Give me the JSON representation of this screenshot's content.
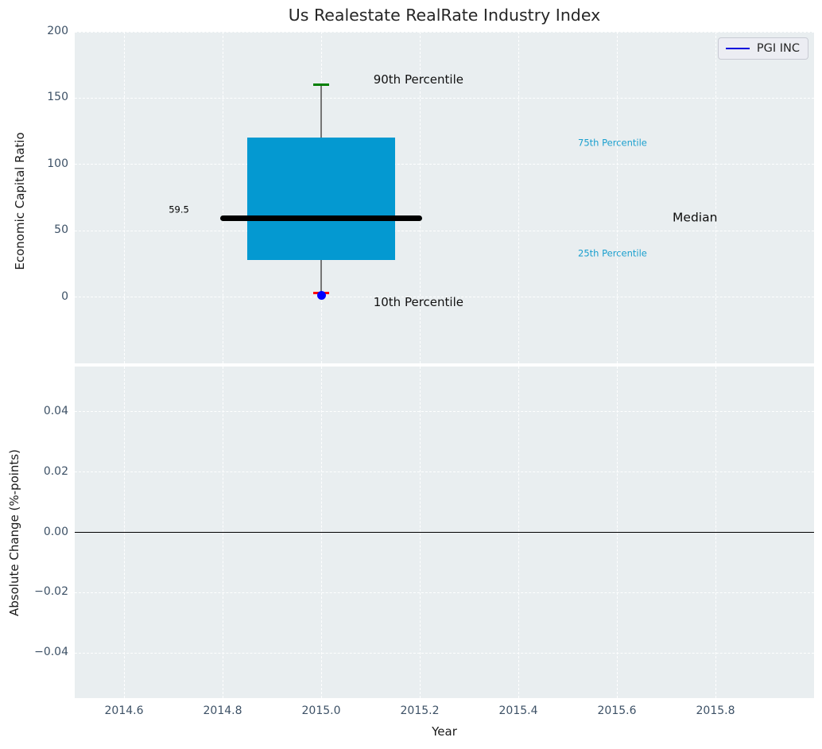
{
  "figure": {
    "title": "Us Realestate RealRate Industry Index",
    "background": "#ffffff",
    "panel_background": "#e9eef0",
    "grid_color": "#ffffff",
    "tick_color": "#3d5166",
    "label_color": "#1a1a1a"
  },
  "legend": {
    "label": "PGI INC",
    "line_color": "#0000dd"
  },
  "xticks": [
    {
      "value": 2014.6,
      "label": "2014.6"
    },
    {
      "value": 2014.8,
      "label": "2014.8"
    },
    {
      "value": 2015.0,
      "label": "2015.0"
    },
    {
      "value": 2015.2,
      "label": "2015.2"
    },
    {
      "value": 2015.4,
      "label": "2015.4"
    },
    {
      "value": 2015.6,
      "label": "2015.6"
    },
    {
      "value": 2015.8,
      "label": "2015.8"
    }
  ],
  "chart_data": [
    {
      "type": "box",
      "title": "Us Realestate RealRate Industry Index",
      "ylabel": "Economic Capital Ratio",
      "xlabel": "",
      "xlim": [
        2014.5,
        2016.0
      ],
      "ylim": [
        -50,
        200
      ],
      "yticks": [
        {
          "value": 200,
          "label": "200"
        },
        {
          "value": 150,
          "label": "150"
        },
        {
          "value": 100,
          "label": "100"
        },
        {
          "value": 50,
          "label": "50"
        },
        {
          "value": 0,
          "label": "0"
        }
      ],
      "grid": true,
      "legend_position": "upper right",
      "box": {
        "x": 2015.0,
        "box_width": 0.3,
        "q75": 120,
        "q25": 28,
        "median": 59.5,
        "median_halfwidth": 0.205,
        "p90": 160,
        "p10": 3,
        "cap_halfwidth": 0.016,
        "box_color": "#0499d1",
        "median_color": "#000000",
        "whisker_color": "#757575",
        "p90_cap_color": "#007f00",
        "p10_cap_color": "#ff0000"
      },
      "series": [
        {
          "name": "PGI INC",
          "x": 2015.0,
          "value": 1.5,
          "marker": "circle",
          "color": "#0000ff"
        }
      ],
      "annotations": [
        {
          "name": "median-value-label",
          "text": "59.5",
          "x": 2014.732,
          "y": 66,
          "color": "#000000",
          "size": 11.5,
          "ha": "right"
        },
        {
          "name": "p90-label",
          "text": "90th Percentile",
          "x": 2015.106,
          "y": 164,
          "color": "#111111",
          "size": 15,
          "ha": "left"
        },
        {
          "name": "p10-label",
          "text": "10th Percentile",
          "x": 2015.106,
          "y": -4,
          "color": "#111111",
          "size": 15,
          "ha": "left"
        },
        {
          "name": "p75-label",
          "text": "75th Percentile",
          "x": 2015.521,
          "y": 116,
          "color": "#1a9fce",
          "size": 11.5,
          "ha": "left"
        },
        {
          "name": "p25-label",
          "text": "25th Percentile",
          "x": 2015.521,
          "y": 33,
          "color": "#1a9fce",
          "size": 11.5,
          "ha": "left"
        },
        {
          "name": "median-label",
          "text": "Median",
          "x": 2015.713,
          "y": 59.5,
          "color": "#0d0d0d",
          "size": 15.5,
          "ha": "left"
        }
      ]
    },
    {
      "type": "line",
      "ylabel": "Absolute Change (%-points)",
      "xlabel": "Year",
      "xlim": [
        2014.5,
        2016.0
      ],
      "ylim": [
        -0.055,
        0.055
      ],
      "yticks": [
        {
          "value": 0.04,
          "label": "0.04"
        },
        {
          "value": 0.02,
          "label": "0.02"
        },
        {
          "value": 0.0,
          "label": "0.00"
        },
        {
          "value": -0.02,
          "label": "−0.02"
        },
        {
          "value": -0.04,
          "label": "−0.04"
        }
      ],
      "grid": true,
      "zero_line": {
        "value": 0.0,
        "color": "#000000"
      },
      "series": []
    }
  ]
}
